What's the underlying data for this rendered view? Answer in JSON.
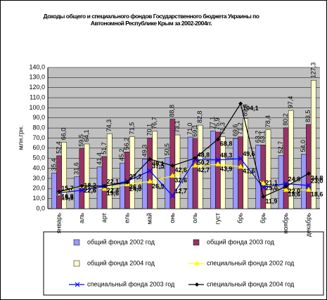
{
  "chart_data": {
    "type": "bar-line",
    "title": "Доходы общего и специального фондов Государственного бюджета Украины по Автономной Республике Крым за 2002-2004гг.",
    "y_label": "млн.грн.",
    "categories": [
      "январь",
      "аль",
      "арт",
      "ель",
      "май",
      "онь",
      "оль",
      "густ",
      "брь",
      "брь",
      "ноябрь",
      "декабрь"
    ],
    "ylim": [
      0,
      140
    ],
    "yticks": [
      {
        "value": 0,
        "label": "0,0"
      },
      {
        "value": 10,
        "label": "10,0"
      },
      {
        "value": 20,
        "label": "20,0"
      },
      {
        "value": 30,
        "label": "30,0"
      },
      {
        "value": 40,
        "label": "40,0"
      },
      {
        "value": 50,
        "label": "50,0"
      },
      {
        "value": 60,
        "label": "60,0"
      },
      {
        "value": 70,
        "label": "70,0"
      },
      {
        "value": 80,
        "label": "80,0"
      },
      {
        "value": 90,
        "label": "90,0"
      },
      {
        "value": 100,
        "label": "100,0"
      },
      {
        "value": 110,
        "label": "110,0"
      },
      {
        "value": 120,
        "label": "120,0"
      },
      {
        "value": 130,
        "label": "130,0"
      },
      {
        "value": 140,
        "label": "140,0"
      }
    ],
    "grid": true,
    "series": [
      {
        "name": "общий фонда 2002 год",
        "kind": "bar",
        "color": "#9999ff",
        "values": [
          35.4,
          31.6,
          41.4,
          45.2,
          49.3,
          50.5,
          71.0,
          77.1,
          69.6,
          63.2,
          52.7,
          54.0
        ],
        "value_labels": [
          "35,4",
          "31,6",
          "41,4",
          "45,2",
          "49,3",
          "50,5",
          "71,0",
          "77,1",
          "69,6",
          "63,2",
          "52,7",
          "54,0"
        ]
      },
      {
        "name": "общий фонда 2003 год",
        "kind": "bar",
        "color": "#993366",
        "values": [
          52.4,
          59.5,
          51.7,
          56.2,
          70.1,
          88.8,
          69.1,
          75.9,
          71.2,
          63.1,
          80.2,
          83.5
        ],
        "value_labels": [
          "52,4",
          "59,5",
          "51,7",
          "56,2",
          "70,1",
          "88,8",
          "69,1",
          "75,9",
          "71,2",
          "63,1",
          "80,2",
          "83,5"
        ]
      },
      {
        "name": "общий фонда 2004 год",
        "kind": "bar",
        "color": "#ffffcc",
        "values": [
          66.0,
          64.1,
          74.3,
          71.5,
          76.7,
          73.1,
          82.8,
          71.3,
          89.4,
          78.4,
          97.4,
          127.3
        ],
        "value_labels": [
          "66,0",
          "64,1",
          "74,3",
          "71,5",
          "76,7",
          "73,1",
          "82,8",
          "71,3",
          "89,4",
          "78,4",
          "97,4",
          "127,3"
        ]
      },
      {
        "name": "специальный фонда 2002 год",
        "kind": "line",
        "marker": "triangle",
        "color": "#ffff00",
        "values": [
          15.1,
          22.5,
          19.6,
          24.0,
          26.9,
          32.6,
          42.7,
          43.9,
          41.6,
          25.0,
          18.6,
          18.6
        ],
        "value_labels": [
          "15,1",
          "22,5",
          "19,6",
          "24,0",
          "26,9",
          "32,6",
          "42,7",
          "43,9",
          "41,6",
          "25,0",
          "18,6",
          "18,6"
        ]
      },
      {
        "name": "специальный фонда 2003 год",
        "kind": "line",
        "marker": "x",
        "color": "#0000ff",
        "values": [
          15.7,
          18.2,
          22.1,
          27.2,
          37.5,
          12.7,
          48.8,
          48.3,
          49.6,
          21.1,
          24.8,
          23.0
        ],
        "value_labels": [
          "15,7",
          "18,2",
          "22,1",
          "27,2",
          "37,5",
          "12,7",
          "48,8",
          "48,3",
          "49,6",
          "21,1",
          "24,8",
          "23,0"
        ]
      },
      {
        "name": "специальный фонда 2004 год",
        "kind": "line",
        "marker": "diamond",
        "color": "#000000",
        "values": [
          16.8,
          22.6,
          22.4,
          26.0,
          49.1,
          42.6,
          50.2,
          68.8,
          104.1,
          11.9,
          22.0,
          34.8
        ],
        "value_labels": [
          "16,8",
          "22,6",
          "22,4",
          "26,0",
          "49,1",
          "42,6",
          "50,2",
          "68,8",
          "104,1",
          "11,9",
          "22,0",
          "34,8"
        ]
      }
    ]
  }
}
